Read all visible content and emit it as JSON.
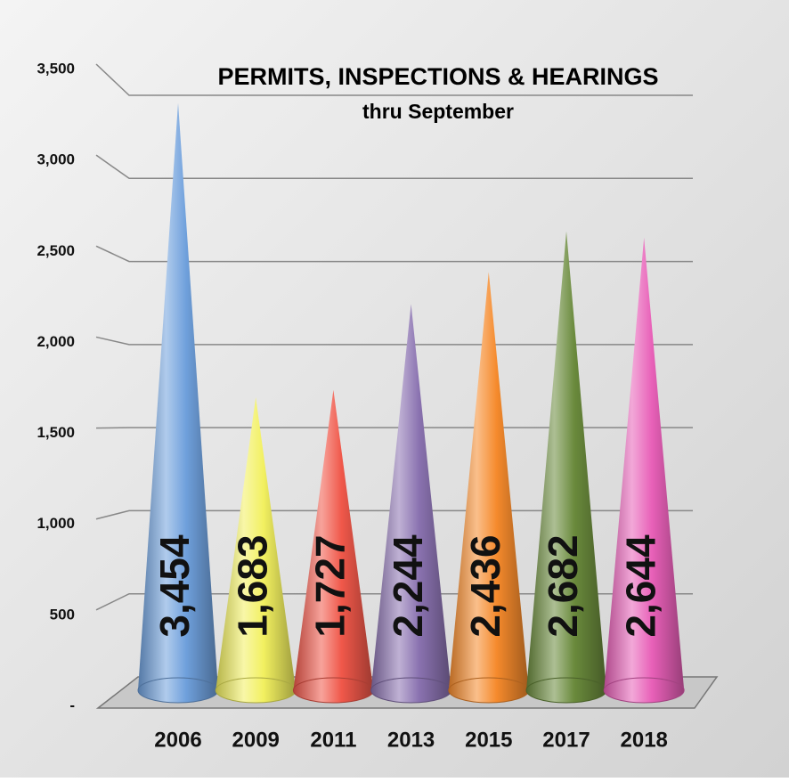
{
  "chart_data": {
    "type": "cone",
    "title": "PERMITS, INSPECTIONS & HEARINGS",
    "subtitle": "thru September",
    "categories": [
      "2006",
      "2009",
      "2011",
      "2013",
      "2015",
      "2017",
      "2018"
    ],
    "series": [
      {
        "values": [
          3454,
          1683,
          1727,
          2244,
          2436,
          2682,
          2644
        ],
        "value_labels": [
          "3,454",
          "1,683",
          "1,727",
          "2,244",
          "2,436",
          "2,682",
          "2,644"
        ],
        "colors": [
          "#6fa0dc",
          "#f2f060",
          "#f0584a",
          "#8a72b0",
          "#f58a2c",
          "#6a8a3c",
          "#e860b8"
        ]
      }
    ],
    "ylim": [
      0,
      3500
    ],
    "yticks": [
      {
        "value": 0,
        "label": "-"
      },
      500,
      {
        "value": 1000,
        "label": "1,000"
      },
      {
        "value": 1500,
        "label": "1,500"
      },
      {
        "value": 2000,
        "label": "2,000"
      },
      {
        "value": 2500,
        "label": "2,500"
      },
      {
        "value": 3000,
        "label": "3,000"
      },
      {
        "value": 3500,
        "label": "3,500"
      }
    ],
    "grid": true
  }
}
